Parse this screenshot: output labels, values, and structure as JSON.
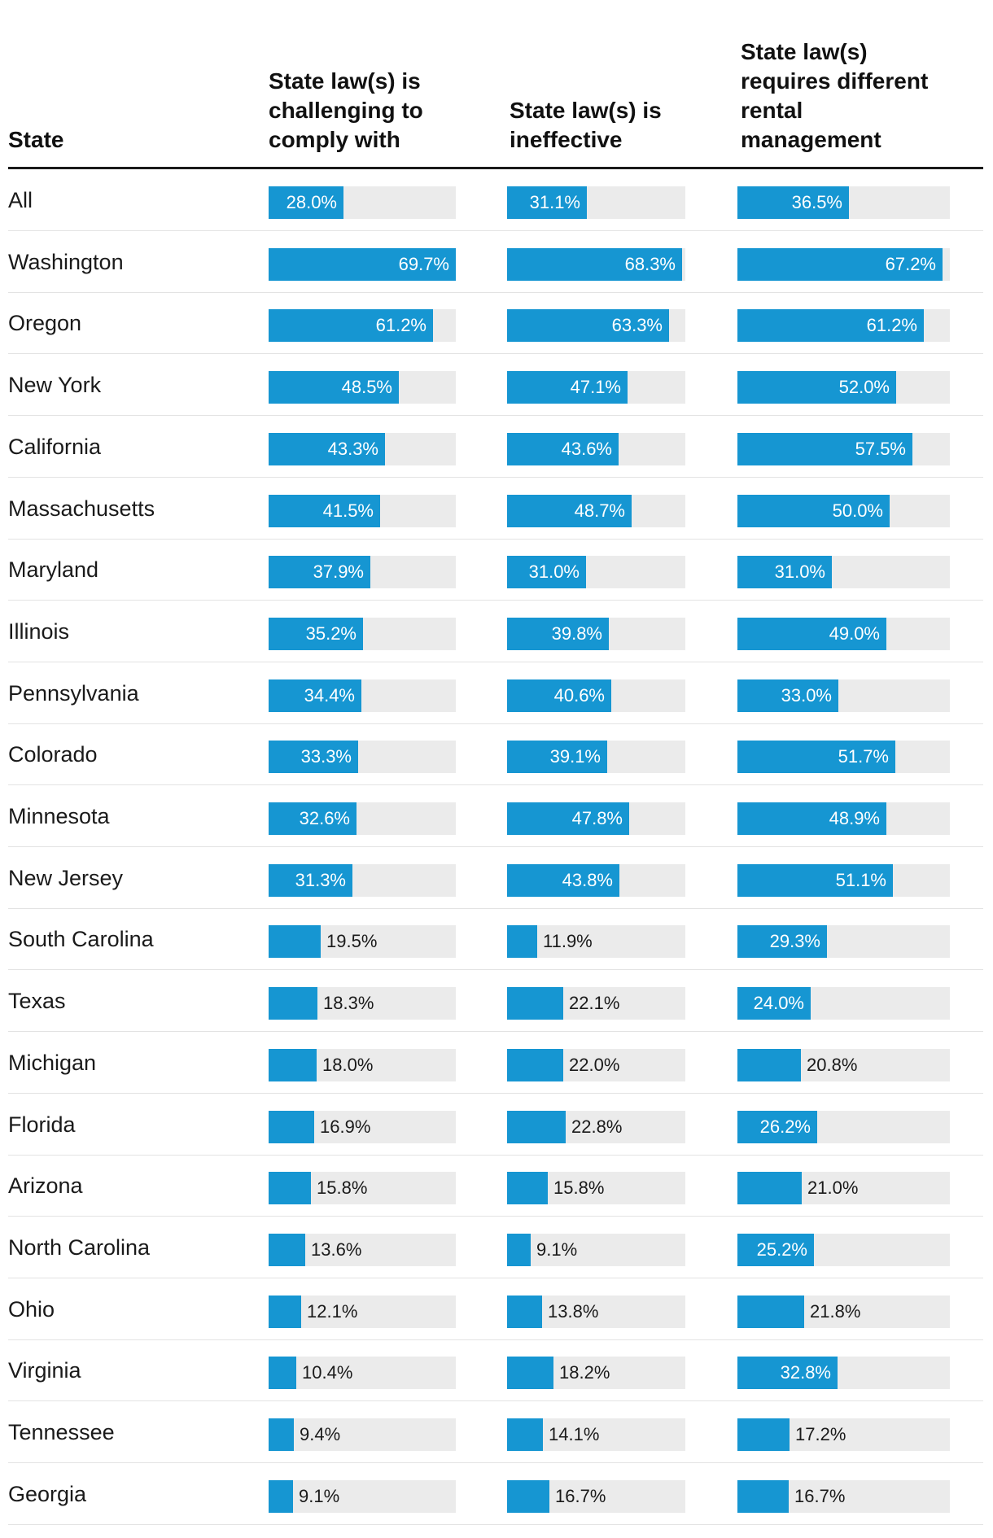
{
  "chart_data": {
    "type": "bar",
    "title": "",
    "row_header": "State",
    "series": [
      {
        "name": "State law(s) is challenging to comply with",
        "values": [
          28.0,
          69.7,
          61.2,
          48.5,
          43.3,
          41.5,
          37.9,
          35.2,
          34.4,
          33.3,
          32.6,
          31.3,
          19.5,
          18.3,
          18.0,
          16.9,
          15.8,
          13.6,
          12.1,
          10.4,
          9.4,
          9.1
        ]
      },
      {
        "name": "State law(s) is ineffective",
        "values": [
          31.1,
          68.3,
          63.3,
          47.1,
          43.6,
          48.7,
          31.0,
          39.8,
          40.6,
          39.1,
          47.8,
          43.8,
          11.9,
          22.1,
          22.0,
          22.8,
          15.8,
          9.1,
          13.8,
          18.2,
          14.1,
          16.7
        ]
      },
      {
        "name": "State law(s) requires different rental management",
        "values": [
          36.5,
          67.2,
          61.2,
          52.0,
          57.5,
          50.0,
          31.0,
          49.0,
          33.0,
          51.7,
          48.9,
          51.1,
          29.3,
          24.0,
          20.8,
          26.2,
          21.0,
          25.2,
          21.8,
          32.8,
          17.2,
          16.7
        ]
      }
    ],
    "categories": [
      "All",
      "Washington",
      "Oregon",
      "New York",
      "California",
      "Massachusetts",
      "Maryland",
      "Illinois",
      "Pennsylvania",
      "Colorado",
      "Minnesota",
      "New Jersey",
      "South Carolina",
      "Texas",
      "Michigan",
      "Florida",
      "Arizona",
      "North Carolina",
      "Ohio",
      "Virginia",
      "Tennessee",
      "Georgia"
    ],
    "value_suffix": "%",
    "colors": {
      "fill": "#1696d2",
      "track": "#ebebeb"
    }
  }
}
